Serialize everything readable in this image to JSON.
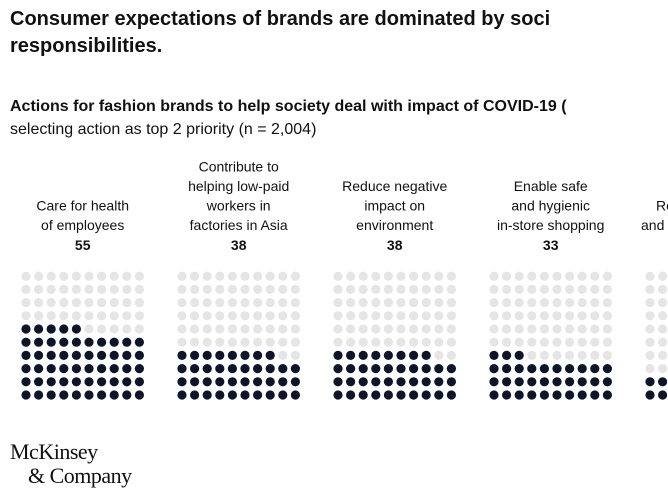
{
  "chart_data": {
    "type": "waffle",
    "title_lines": [
      "Consumer expectations of brands are dominated by soci",
      "responsibilities."
    ],
    "subtitle": "Actions for fashion brands to help society deal with impact of COVID-19 (",
    "subtitle2": "selecting action as top 2 priority (n = 2,004)",
    "categories": [
      [
        "Care for health",
        "of employees"
      ],
      [
        "Contribute to",
        "helping low-paid",
        "workers in",
        "factories in Asia"
      ],
      [
        "Reduce negative",
        "impact on",
        "environment"
      ],
      [
        "Enable safe",
        "and hygienic",
        "in-store shopping"
      ],
      [
        "Re",
        "and"
      ]
    ],
    "values": [
      55,
      38,
      38,
      33,
      20
    ],
    "value_labels": [
      "55",
      "38",
      "38",
      "33",
      null
    ],
    "color": "#0d1628",
    "empty_color": "#e5e5e5",
    "source_lines": [
      "McKinsey",
      "& Company"
    ]
  }
}
